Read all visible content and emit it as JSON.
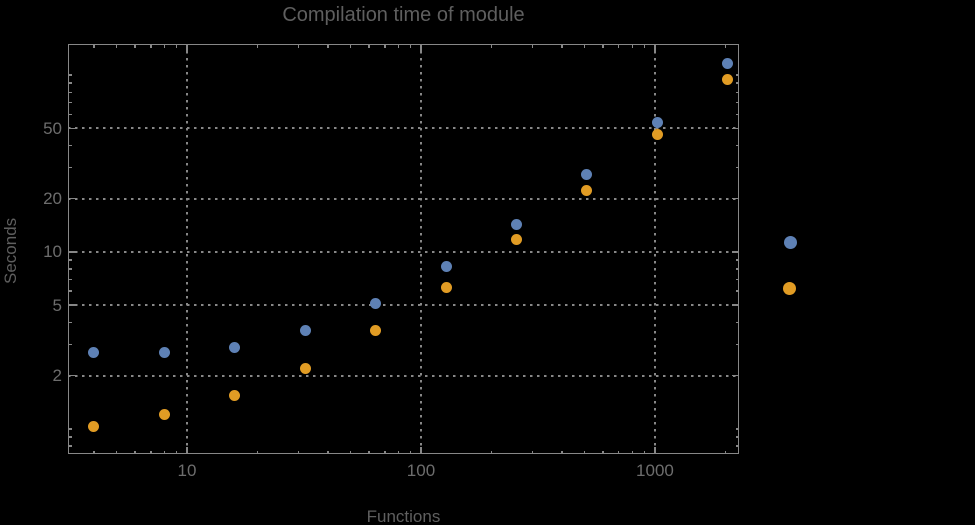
{
  "page": {
    "background": "#000000"
  },
  "chart_data": {
    "type": "scatter",
    "title": "Compilation time of module",
    "xlabel": "Functions",
    "ylabel": "Seconds",
    "xscale": "log",
    "yscale": "log",
    "xlim": [
      3.1,
      2286
    ],
    "ylim": [
      0.72,
      150
    ],
    "grid": "dotted",
    "x_major_ticks": [
      10,
      100,
      1000
    ],
    "x_major_labels": [
      "10",
      "100",
      "1000"
    ],
    "x_minor_ticks": [
      4,
      5,
      6,
      7,
      8,
      9,
      20,
      30,
      40,
      50,
      60,
      70,
      80,
      90,
      200,
      300,
      400,
      500,
      600,
      700,
      800,
      900,
      2000
    ],
    "y_major_ticks": [
      2,
      5,
      10,
      20,
      50
    ],
    "y_major_labels": [
      "2",
      "5",
      "10",
      "20",
      "50"
    ],
    "y_minor_ticks": [
      0.8,
      0.9,
      1,
      3,
      4,
      6,
      7,
      8,
      9,
      30,
      40,
      60,
      70,
      80,
      90,
      100
    ],
    "x": [
      4,
      8,
      16,
      32,
      64,
      128,
      256,
      512,
      1024,
      2048
    ],
    "series": [
      {
        "name": "blue-series",
        "color": "#5e81b5",
        "values": [
          2.7,
          2.7,
          2.9,
          3.6,
          5.1,
          8.3,
          14.3,
          27.3,
          54,
          117
        ]
      },
      {
        "name": "orange-series",
        "color": "#e19c24",
        "values": [
          1.03,
          1.21,
          1.54,
          2.2,
          3.6,
          6.3,
          11.8,
          22.4,
          46,
          95
        ]
      }
    ],
    "legend_markers": [
      {
        "name": "blue-series-marker",
        "color": "#5e81b5"
      },
      {
        "name": "orange-series-marker",
        "color": "#e19c24"
      }
    ],
    "legend_position": "right-outside"
  },
  "colors": {
    "background": "#000000",
    "frame": "#878787",
    "grid": "#878787",
    "title_text": "#5f5f5f",
    "axis_label_text": "#5f5f5f",
    "tick_label_text": "#6d6d6d"
  }
}
